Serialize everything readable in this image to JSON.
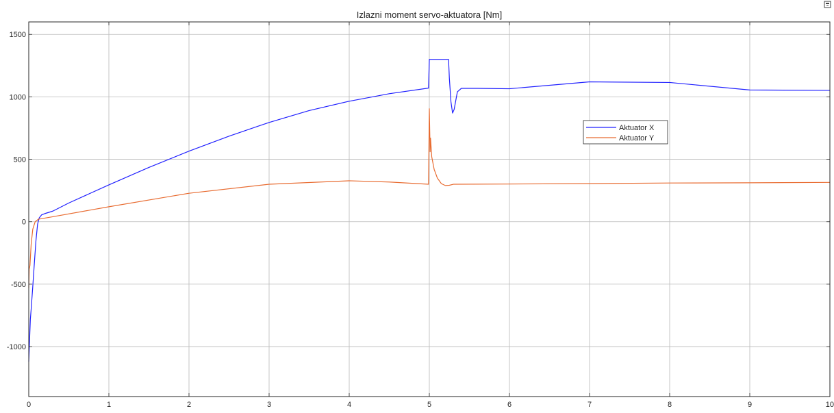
{
  "window": {
    "corner_icon": "restore-window-icon"
  },
  "chart_data": {
    "type": "line",
    "title": "Izlazni moment servo-aktuatora [Nm]",
    "xlabel": "",
    "ylabel": "",
    "xlim": [
      0,
      10
    ],
    "ylim": [
      -1400,
      1600
    ],
    "xticks": [
      0,
      1,
      2,
      3,
      4,
      5,
      6,
      7,
      8,
      9,
      10
    ],
    "xtick_labels": [
      "0",
      "1",
      "2",
      "3",
      "4",
      "5",
      "6",
      "7",
      "8",
      "9",
      "10"
    ],
    "yticks": [
      -1000,
      -500,
      0,
      500,
      1000,
      1500
    ],
    "ytick_labels": [
      "-1000",
      "-500",
      "0",
      "500",
      "1000",
      "1500"
    ],
    "grid": true,
    "legend": {
      "position": "center-right",
      "entries": [
        "Aktuator X",
        "Aktuator Y"
      ]
    },
    "colors": {
      "axes": "#262626",
      "grid": "#b8b8b8",
      "background": "#ffffff"
    },
    "series": [
      {
        "name": "Aktuator X",
        "color": "#1f1fff",
        "points": [
          [
            0,
            -1120
          ],
          [
            0.01,
            -950
          ],
          [
            0.02,
            -780
          ],
          [
            0.03,
            -700
          ],
          [
            0.05,
            -520
          ],
          [
            0.07,
            -330
          ],
          [
            0.09,
            -150
          ],
          [
            0.11,
            -20
          ],
          [
            0.13,
            30
          ],
          [
            0.16,
            55
          ],
          [
            0.2,
            65
          ],
          [
            0.3,
            85
          ],
          [
            0.5,
            150
          ],
          [
            1.0,
            295
          ],
          [
            1.5,
            435
          ],
          [
            2.0,
            565
          ],
          [
            2.5,
            685
          ],
          [
            3.0,
            795
          ],
          [
            3.5,
            890
          ],
          [
            4.0,
            965
          ],
          [
            4.5,
            1025
          ],
          [
            4.99,
            1070
          ],
          [
            5.0,
            1300
          ],
          [
            5.24,
            1300
          ],
          [
            5.25,
            1150
          ],
          [
            5.27,
            960
          ],
          [
            5.29,
            870
          ],
          [
            5.31,
            900
          ],
          [
            5.35,
            1040
          ],
          [
            5.4,
            1068
          ],
          [
            5.6,
            1068
          ],
          [
            6.0,
            1065
          ],
          [
            7.0,
            1120
          ],
          [
            8.0,
            1115
          ],
          [
            9.0,
            1055
          ],
          [
            10.0,
            1052
          ]
        ]
      },
      {
        "name": "Aktuator Y",
        "color": "#e86b30",
        "points": [
          [
            0,
            -530
          ],
          [
            0.005,
            -380
          ],
          [
            0.015,
            -350
          ],
          [
            0.03,
            -180
          ],
          [
            0.05,
            -60
          ],
          [
            0.08,
            0
          ],
          [
            0.12,
            20
          ],
          [
            0.3,
            40
          ],
          [
            1.0,
            120
          ],
          [
            2.0,
            228
          ],
          [
            3.0,
            300
          ],
          [
            4.0,
            328
          ],
          [
            4.5,
            318
          ],
          [
            4.99,
            300
          ],
          [
            5.0,
            905
          ],
          [
            5.01,
            560
          ],
          [
            5.015,
            670
          ],
          [
            5.03,
            520
          ],
          [
            5.06,
            420
          ],
          [
            5.1,
            350
          ],
          [
            5.15,
            305
          ],
          [
            5.2,
            290
          ],
          [
            5.25,
            292
          ],
          [
            5.3,
            300
          ],
          [
            6.0,
            302
          ],
          [
            7.0,
            305
          ],
          [
            8.0,
            310
          ],
          [
            9.0,
            312
          ],
          [
            10.0,
            315
          ]
        ]
      }
    ]
  }
}
